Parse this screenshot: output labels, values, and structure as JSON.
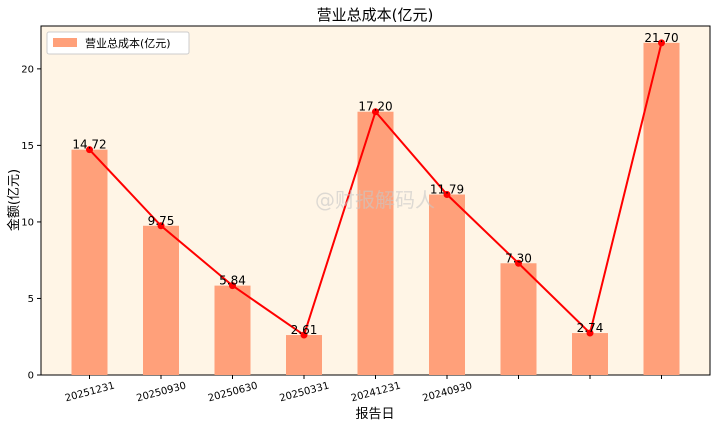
{
  "chart_data": {
    "type": "bar",
    "title": "营业总成本(亿元)",
    "xlabel": "报告日",
    "ylabel": "金额(亿元)",
    "categories": [
      "20251231",
      "20250930",
      "20250630",
      "20250331",
      "20241231",
      "20240930",
      "",
      "",
      ""
    ],
    "series": [
      {
        "name": "营业总成本(亿元)",
        "type": "bar",
        "values": [
          14.72,
          9.75,
          5.84,
          2.61,
          17.2,
          11.79,
          7.3,
          2.74,
          21.7
        ]
      }
    ],
    "line_values": [
      14.72,
      9.75,
      5.84,
      2.61,
      17.2,
      11.79,
      7.3,
      2.74,
      21.7
    ],
    "data_labels": [
      "14.72",
      "9.75",
      "5.84",
      "2.61",
      "17.20",
      "11.79",
      "7.30",
      "2.74",
      "21.70"
    ],
    "yticks": [
      0,
      5,
      10,
      15,
      20
    ],
    "ylim": [
      0,
      22.8
    ],
    "grid": false,
    "legend_position": "top-left",
    "watermark": "@财报解码人",
    "colors": {
      "bar": "#FFA07A",
      "line": "#FF0000",
      "plot_bg": "#FFF5E6"
    }
  }
}
